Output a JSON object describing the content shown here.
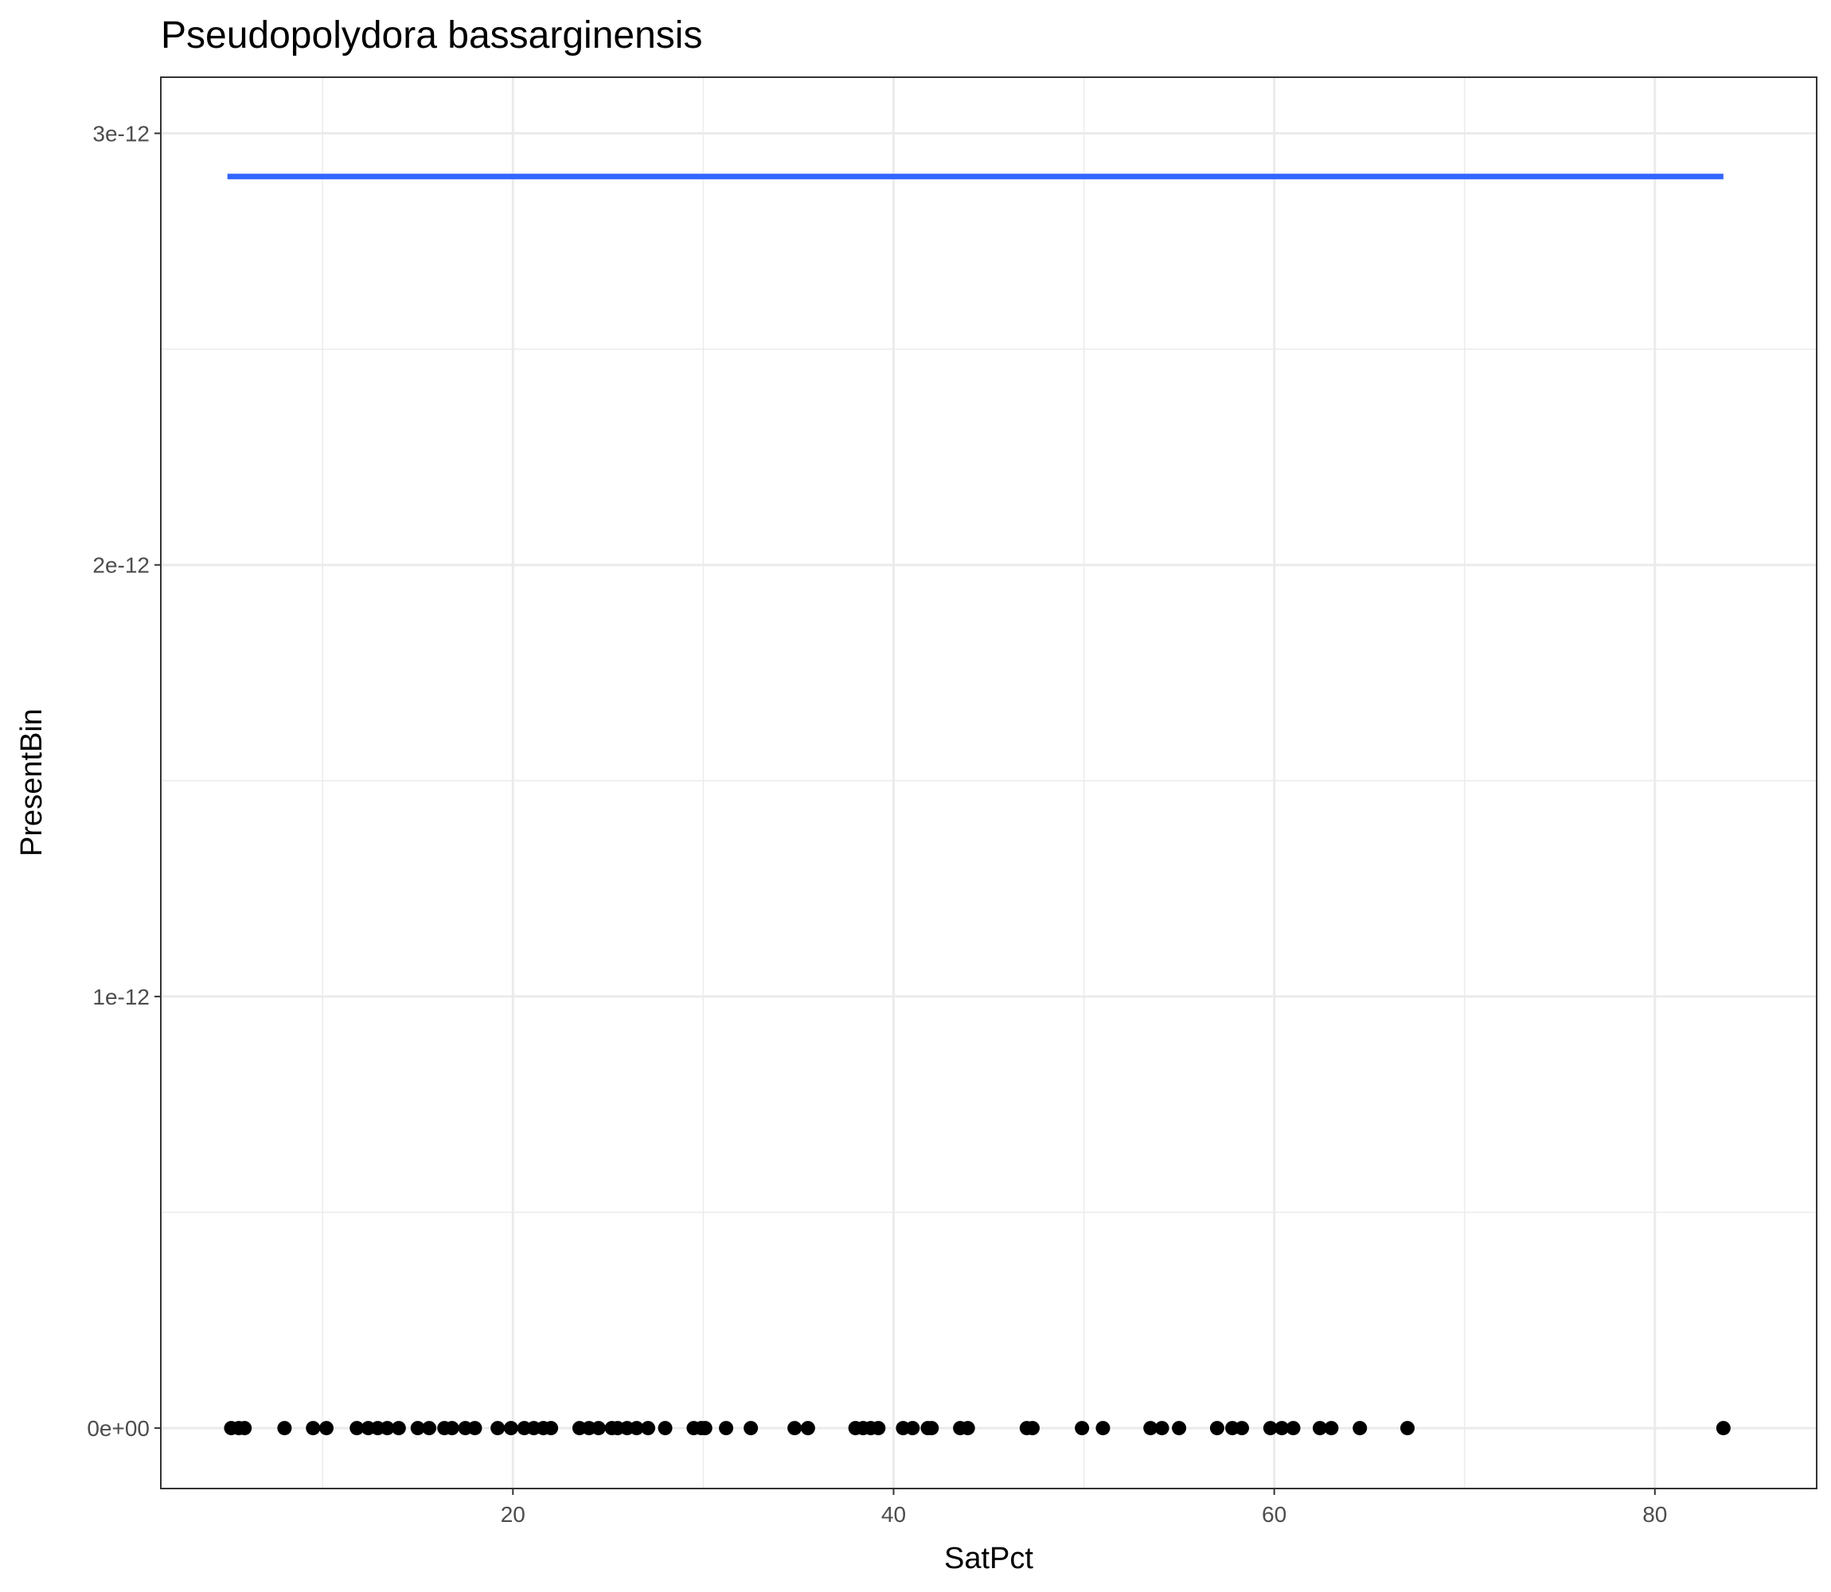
{
  "chart_data": {
    "type": "scatter",
    "title": "Pseudopolydora bassarginensis",
    "xlabel": "SatPct",
    "ylabel": "PresentBin",
    "xlim": [
      1.5,
      88.5
    ],
    "ylim": [
      -1.4e-13,
      3.13e-12
    ],
    "x_ticks": [
      20,
      40,
      60,
      80
    ],
    "x_tick_labels": [
      "20",
      "40",
      "60",
      "80"
    ],
    "x_minor_ticks": [
      10,
      30,
      50,
      70
    ],
    "y_ticks": [
      0,
      1e-12,
      2e-12,
      3e-12
    ],
    "y_tick_labels": [
      "0e+00",
      "1e-12",
      "2e-12",
      "3e-12"
    ],
    "y_minor_ticks": [
      5e-13,
      1.5e-12,
      2.5e-12
    ],
    "grid": true,
    "legend": "none",
    "points": {
      "x": [
        5.2,
        5.6,
        5.9,
        8.0,
        9.5,
        10.2,
        11.8,
        12.4,
        12.9,
        13.4,
        14.0,
        15.0,
        15.6,
        16.4,
        16.8,
        17.5,
        18.0,
        19.2,
        19.9,
        20.6,
        21.1,
        21.6,
        22.0,
        23.5,
        24.0,
        24.5,
        25.2,
        25.5,
        26.0,
        26.5,
        27.1,
        28.0,
        29.5,
        29.9,
        30.1,
        31.2,
        32.5,
        34.8,
        35.5,
        38.0,
        38.4,
        38.8,
        39.2,
        40.5,
        41.0,
        41.8,
        42.0,
        43.5,
        43.9,
        47.0,
        47.3,
        49.9,
        51.0,
        53.5,
        54.1,
        55.0,
        57.0,
        57.8,
        58.3,
        59.8,
        60.4,
        61.0,
        62.4,
        63.0,
        64.5,
        67.0,
        83.6
      ],
      "y": [
        0,
        0,
        0,
        0,
        0,
        0,
        0,
        0,
        0,
        0,
        0,
        0,
        0,
        0,
        0,
        0,
        0,
        0,
        0,
        0,
        0,
        0,
        0,
        0,
        0,
        0,
        0,
        0,
        0,
        0,
        0,
        0,
        0,
        0,
        0,
        0,
        0,
        0,
        0,
        0,
        0,
        0,
        0,
        0,
        0,
        0,
        0,
        0,
        0,
        0,
        0,
        0,
        0,
        0,
        0,
        0,
        0,
        0,
        0,
        0,
        0,
        0,
        0,
        0,
        0,
        0,
        0
      ]
    },
    "fit_line": {
      "x": [
        5.0,
        83.6
      ],
      "y": [
        2.9e-12,
        2.9e-12
      ]
    },
    "colors": {
      "points": "#000000",
      "fit_line": "#3366ff",
      "grid": "#ebebeb",
      "panel_border": "#333333",
      "tick_text": "#4d4d4d"
    }
  }
}
